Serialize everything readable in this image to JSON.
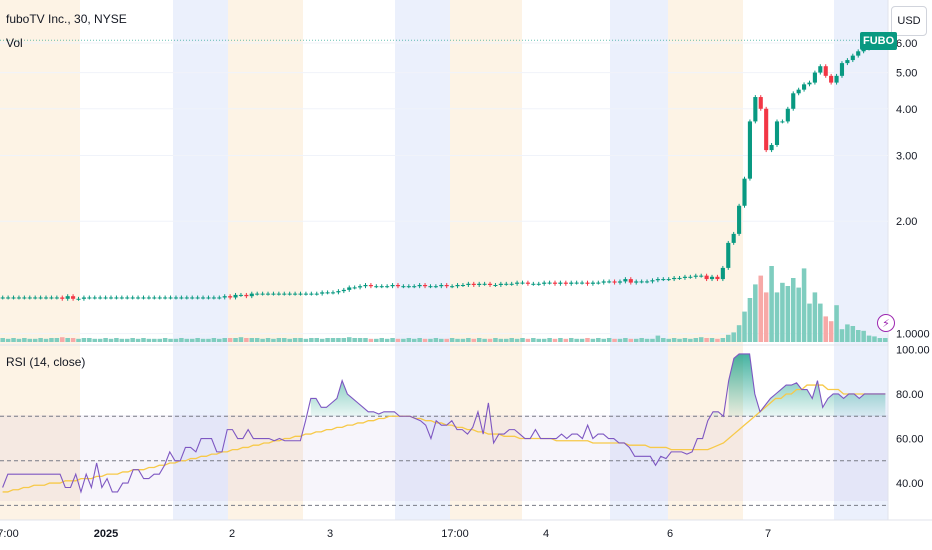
{
  "header": {
    "symbol_title": "fuboTV Inc., 30, NYSE",
    "volume_label": "Vol",
    "currency_button": "USD",
    "last_price_tag": "FUBO"
  },
  "rsi_pane": {
    "label": "RSI (14, close)"
  },
  "colors": {
    "up": "#089981",
    "down": "#f23645",
    "vol_up": "#7fcdbf",
    "vol_down": "#f7a9a7",
    "rsi": "#7e57c2",
    "rsi_ma": "#f7c948",
    "premarket_bg": "#fdf1e0",
    "postmarket_bg": "#e8edfc"
  },
  "chart_data": [
    {
      "type": "candlestick",
      "title": "fuboTV Inc., 30, NYSE",
      "y_axis_ticks": [
        "1.0000",
        "2.00",
        "3.00",
        "4.00",
        "5.00",
        "6.00"
      ],
      "y_scale": "log",
      "ylim": [
        0.95,
        6.5
      ],
      "x_axis_ticks": [
        {
          "label": "7:00",
          "bold": false
        },
        {
          "label": "2025",
          "bold": true
        },
        {
          "label": "2",
          "bold": false
        },
        {
          "label": "3",
          "bold": false
        },
        {
          "label": "17:00",
          "bold": false
        },
        {
          "label": "4",
          "bold": false
        },
        {
          "label": "6",
          "bold": false
        },
        {
          "label": "7",
          "bold": false
        }
      ],
      "close_prices": [
        1.25,
        1.25,
        1.25,
        1.25,
        1.25,
        1.25,
        1.25,
        1.25,
        1.25,
        1.25,
        1.25,
        1.24,
        1.26,
        1.24,
        1.24,
        1.25,
        1.25,
        1.25,
        1.25,
        1.25,
        1.25,
        1.25,
        1.25,
        1.25,
        1.25,
        1.25,
        1.25,
        1.25,
        1.25,
        1.25,
        1.25,
        1.25,
        1.25,
        1.25,
        1.25,
        1.25,
        1.25,
        1.25,
        1.25,
        1.25,
        1.25,
        1.26,
        1.25,
        1.27,
        1.27,
        1.26,
        1.28,
        1.28,
        1.28,
        1.28,
        1.28,
        1.28,
        1.28,
        1.28,
        1.28,
        1.28,
        1.28,
        1.28,
        1.28,
        1.29,
        1.29,
        1.29,
        1.3,
        1.31,
        1.33,
        1.33,
        1.34,
        1.35,
        1.34,
        1.34,
        1.34,
        1.34,
        1.35,
        1.34,
        1.34,
        1.34,
        1.34,
        1.35,
        1.34,
        1.34,
        1.34,
        1.35,
        1.34,
        1.34,
        1.35,
        1.35,
        1.36,
        1.35,
        1.36,
        1.36,
        1.35,
        1.35,
        1.36,
        1.36,
        1.36,
        1.37,
        1.37,
        1.36,
        1.36,
        1.36,
        1.37,
        1.37,
        1.36,
        1.37,
        1.36,
        1.37,
        1.37,
        1.37,
        1.36,
        1.37,
        1.37,
        1.38,
        1.38,
        1.37,
        1.38,
        1.4,
        1.37,
        1.38,
        1.38,
        1.38,
        1.39,
        1.4,
        1.4,
        1.4,
        1.41,
        1.41,
        1.42,
        1.42,
        1.43,
        1.43,
        1.4,
        1.42,
        1.4,
        1.5,
        1.75,
        1.85,
        2.2,
        2.6,
        3.7,
        4.3,
        4.0,
        3.1,
        3.2,
        3.7,
        3.7,
        4.0,
        4.4,
        4.5,
        4.65,
        4.7,
        5.0,
        5.2,
        4.9,
        4.7,
        4.9,
        5.3,
        5.4,
        5.55,
        5.7,
        5.8,
        5.9,
        6.0,
        6.05,
        6.1
      ],
      "volume_relative": [
        0.05,
        0.04,
        0.05,
        0.04,
        0.05,
        0.04,
        0.04,
        0.05,
        0.04,
        0.05,
        0.05,
        0.06,
        0.05,
        0.05,
        0.04,
        0.05,
        0.05,
        0.04,
        0.04,
        0.05,
        0.04,
        0.05,
        0.04,
        0.04,
        0.05,
        0.04,
        0.05,
        0.04,
        0.04,
        0.04,
        0.05,
        0.04,
        0.04,
        0.05,
        0.04,
        0.04,
        0.05,
        0.04,
        0.04,
        0.05,
        0.04,
        0.05,
        0.05,
        0.05,
        0.06,
        0.05,
        0.05,
        0.05,
        0.04,
        0.05,
        0.04,
        0.05,
        0.05,
        0.04,
        0.05,
        0.05,
        0.04,
        0.05,
        0.05,
        0.04,
        0.05,
        0.05,
        0.05,
        0.05,
        0.06,
        0.05,
        0.05,
        0.05,
        0.04,
        0.04,
        0.05,
        0.04,
        0.05,
        0.04,
        0.04,
        0.05,
        0.04,
        0.05,
        0.04,
        0.04,
        0.05,
        0.04,
        0.04,
        0.05,
        0.04,
        0.04,
        0.05,
        0.04,
        0.05,
        0.04,
        0.04,
        0.05,
        0.04,
        0.04,
        0.05,
        0.04,
        0.05,
        0.04,
        0.05,
        0.04,
        0.04,
        0.05,
        0.04,
        0.05,
        0.04,
        0.05,
        0.04,
        0.04,
        0.05,
        0.04,
        0.05,
        0.04,
        0.05,
        0.04,
        0.04,
        0.05,
        0.04,
        0.04,
        0.05,
        0.04,
        0.04,
        0.08,
        0.05,
        0.04,
        0.05,
        0.04,
        0.05,
        0.04,
        0.05,
        0.06,
        0.05,
        0.05,
        0.04,
        0.05,
        0.09,
        0.12,
        0.21,
        0.38,
        0.55,
        0.72,
        0.83,
        0.62,
        0.95,
        0.62,
        0.74,
        0.7,
        0.8,
        0.68,
        0.92,
        0.48,
        0.62,
        0.48,
        0.32,
        0.26,
        0.46,
        0.16,
        0.22,
        0.2,
        0.15,
        0.14,
        0.08,
        0.07,
        0.05,
        0.05,
        0.06,
        0.05,
        0.04,
        0.04,
        0.03,
        0.05
      ]
    },
    {
      "type": "line",
      "title": "RSI (14, close)",
      "y_axis_ticks": [
        "40.00",
        "60.00",
        "80.00",
        "100.00"
      ],
      "ylim": [
        27,
        102
      ],
      "reference_lines": [
        70,
        50,
        30
      ],
      "series": [
        {
          "values": [
            38,
            44,
            44,
            44,
            44,
            44,
            44,
            44,
            44,
            44,
            44,
            44,
            38,
            38,
            44,
            36,
            44,
            38,
            49,
            38,
            42,
            36,
            36,
            40,
            40,
            46,
            46,
            42,
            42,
            44,
            44,
            48,
            54,
            50,
            50,
            56,
            56,
            54,
            60,
            60,
            60,
            54,
            54,
            64,
            64,
            60,
            60,
            64,
            60,
            60,
            60,
            60,
            59,
            60,
            59,
            59,
            59,
            59,
            68,
            78,
            78,
            74,
            74,
            76,
            78,
            86,
            80,
            78,
            76,
            74,
            72,
            72,
            71,
            72,
            72,
            72,
            70,
            70,
            70,
            69,
            68,
            66,
            60,
            68,
            66,
            66,
            68,
            64,
            64,
            62,
            65,
            72,
            62,
            76,
            58,
            62,
            62,
            64,
            64,
            62,
            60,
            60,
            64,
            60,
            60,
            60,
            60,
            62,
            60,
            62,
            62,
            60,
            66,
            60,
            62,
            62,
            60,
            60,
            58,
            58,
            56,
            52,
            52,
            52,
            52,
            48,
            52,
            51,
            54,
            54,
            54,
            53,
            54,
            60,
            60,
            68,
            72,
            72,
            70,
            86,
            96,
            98,
            98,
            98,
            80,
            72,
            75,
            78,
            80,
            82,
            84,
            84,
            85,
            82,
            82,
            78,
            86,
            74,
            78,
            80,
            80,
            78,
            80,
            80,
            78,
            80,
            80,
            80,
            80,
            80
          ]
        },
        {
          "values": [
            36,
            36,
            37,
            37,
            38,
            38,
            39,
            39,
            39,
            40,
            40,
            40,
            41,
            41,
            41,
            42,
            42,
            42,
            43,
            43,
            44,
            44,
            44,
            45,
            45,
            46,
            46,
            46,
            47,
            47,
            48,
            48,
            49,
            49,
            50,
            50,
            51,
            51,
            52,
            52,
            53,
            53,
            54,
            54,
            55,
            55,
            56,
            56,
            57,
            57,
            58,
            58,
            59,
            59,
            60,
            60,
            61,
            61,
            62,
            62,
            63,
            63,
            64,
            64,
            65,
            65,
            66,
            66,
            67,
            67,
            68,
            68,
            69,
            69,
            70,
            70,
            70,
            70,
            70,
            69,
            69,
            68,
            68,
            67,
            67,
            66,
            66,
            65,
            65,
            64,
            64,
            63,
            63,
            62,
            62,
            62,
            61,
            61,
            61,
            60,
            60,
            60,
            60,
            60,
            60,
            60,
            59,
            59,
            59,
            59,
            59,
            59,
            59,
            58,
            58,
            58,
            58,
            58,
            58,
            58,
            57,
            57,
            57,
            57,
            56,
            56,
            56,
            56,
            55,
            55,
            55,
            55,
            55,
            55,
            55,
            55,
            56,
            57,
            58,
            60,
            62,
            64,
            66,
            68,
            70,
            72,
            74,
            76,
            78,
            78,
            80,
            80,
            82,
            82,
            84,
            84,
            84,
            84,
            82,
            82,
            82,
            80,
            80,
            80,
            80,
            80,
            80,
            80,
            80,
            80
          ]
        }
      ]
    }
  ]
}
